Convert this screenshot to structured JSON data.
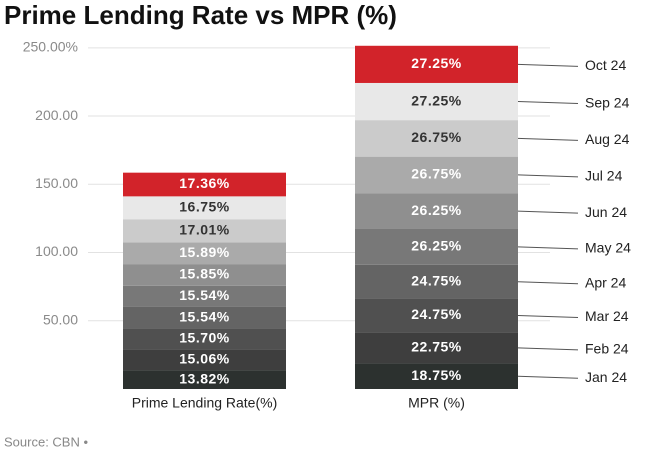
{
  "chart_data": {
    "type": "stacked_bar",
    "title": "Prime Lending Rate vs MPR (%)",
    "source": "Source: CBN •",
    "categories": [
      "Prime Lending Rate(%)",
      "MPR (%)"
    ],
    "series": [
      {
        "name": "Jan 24",
        "color": "#2c312f",
        "values": [
          13.82,
          18.75
        ],
        "value_labels": [
          "13.82%",
          "18.75%"
        ]
      },
      {
        "name": "Feb 24",
        "color": "#3e3e3e",
        "values": [
          15.06,
          22.75
        ],
        "value_labels": [
          "15.06%",
          "22.75%"
        ]
      },
      {
        "name": "Mar 24",
        "color": "#505050",
        "values": [
          15.7,
          24.75
        ],
        "value_labels": [
          "15.70%",
          "24.75%"
        ]
      },
      {
        "name": "Apr 24",
        "color": "#646464",
        "values": [
          15.54,
          24.75
        ],
        "value_labels": [
          "15.54%",
          "24.75%"
        ]
      },
      {
        "name": "May 24",
        "color": "#787878",
        "values": [
          15.54,
          26.25
        ],
        "value_labels": [
          "15.54%",
          "26.25%"
        ]
      },
      {
        "name": "Jun 24",
        "color": "#8f8f8f",
        "values": [
          15.85,
          26.25
        ],
        "value_labels": [
          "15.85%",
          "26.25%"
        ]
      },
      {
        "name": "Jul 24",
        "color": "#aaaaaa",
        "values": [
          15.89,
          26.75
        ],
        "value_labels": [
          "15.89%",
          "26.75%"
        ]
      },
      {
        "name": "Aug 24",
        "color": "#cbcbcb",
        "values": [
          17.01,
          26.75
        ],
        "value_labels": [
          "17.01%",
          "26.75%"
        ]
      },
      {
        "name": "Sep 24",
        "color": "#e8e8e8",
        "values": [
          16.75,
          27.25
        ],
        "value_labels": [
          "16.75%",
          "27.25%"
        ]
      },
      {
        "name": "Oct 24",
        "color": "#d2232a",
        "values": [
          17.36,
          27.25
        ],
        "value_labels": [
          "17.36%",
          "27.25%"
        ]
      }
    ],
    "ylim": [
      0,
      255
    ],
    "yticks": [
      {
        "value": 50,
        "label": "50.00"
      },
      {
        "value": 100,
        "label": "100.00"
      },
      {
        "value": 150,
        "label": "150.00"
      },
      {
        "value": 200,
        "label": "200.00"
      },
      {
        "value": 250,
        "label": "250.00%"
      }
    ],
    "grid": true
  }
}
